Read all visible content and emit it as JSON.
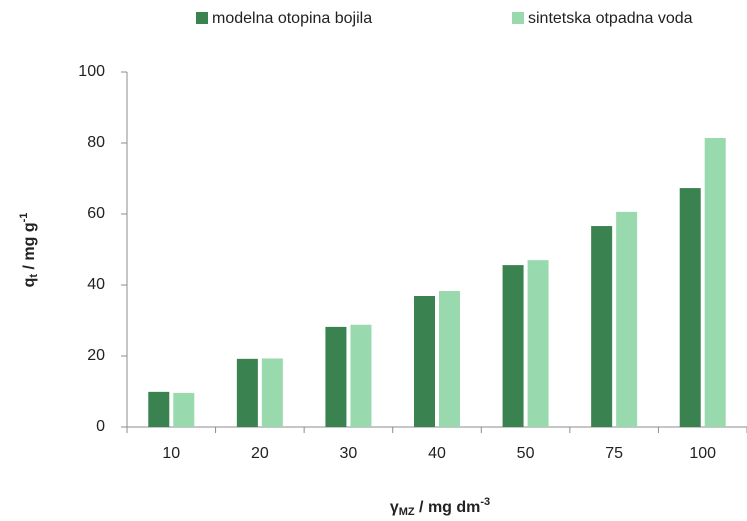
{
  "chart_data": {
    "type": "bar",
    "x_label": {
      "base": "γ",
      "sub": "MZ",
      "text": " / mg dm",
      "sup": "-3"
    },
    "y_label": {
      "base": "q",
      "sub": "t",
      "text": " / mg g",
      "sup": "-1"
    },
    "categories": [
      "10",
      "20",
      "30",
      "40",
      "50",
      "75",
      "100"
    ],
    "series": [
      {
        "name": "modelna otopina bojila",
        "color": "#3a8250",
        "values": [
          9.9,
          19.2,
          28.2,
          36.9,
          45.6,
          56.6,
          67.3
        ]
      },
      {
        "name": "sintetska otpadna voda",
        "color": "#98d9ad",
        "values": [
          9.6,
          19.3,
          28.8,
          38.3,
          47,
          60.6,
          81.4
        ]
      }
    ],
    "ylim": [
      0,
      100
    ],
    "yticks": [
      0,
      20,
      40,
      60,
      80,
      100
    ],
    "grid": false
  }
}
